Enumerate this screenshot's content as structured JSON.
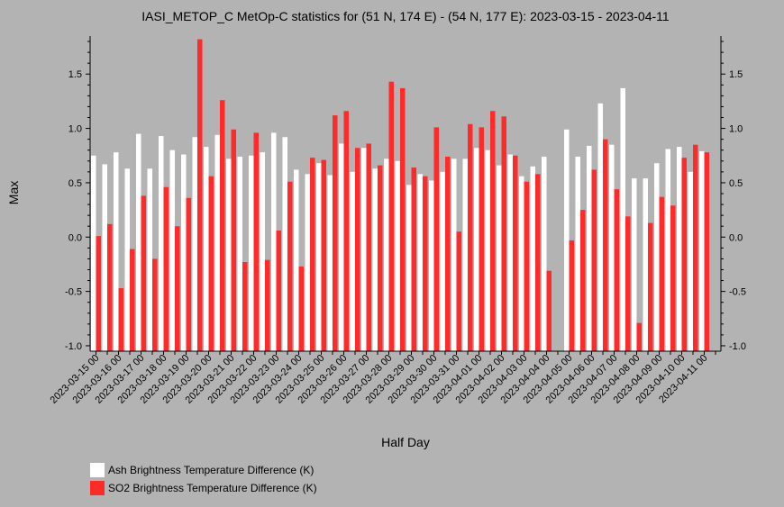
{
  "chart_data": {
    "type": "bar",
    "title": "IASI_METOP_C MetOp-C statistics for (51 N, 174 E) - (54 N, 177 E): 2023-03-15 - 2023-04-11",
    "xlabel": "Half Day",
    "ylabel": "Max",
    "ylim": [
      -1.05,
      1.85
    ],
    "yticks": [
      -1.0,
      -0.5,
      0.0,
      0.5,
      1.0,
      1.5
    ],
    "ytick_labels": [
      "-1.0",
      "-0.5",
      "0.0",
      "0.5",
      "1.0",
      "1.5"
    ],
    "x_start": "2023-03-15 00",
    "x_end": "2023-04-11 12",
    "xtick_labels": [
      "2023-03-15 00",
      "2023-03-16 00",
      "2023-03-17 00",
      "2023-03-18 00",
      "2023-03-19 00",
      "2023-03-20 00",
      "2023-03-21 00",
      "2023-03-22 00",
      "2023-03-23 00",
      "2023-03-24 00",
      "2023-03-25 00",
      "2023-03-26 00",
      "2023-03-27 00",
      "2023-03-28 00",
      "2023-03-29 00",
      "2023-03-30 00",
      "2023-03-31 00",
      "2023-04-01 00",
      "2023-04-02 00",
      "2023-04-03 00",
      "2023-04-04 00",
      "2023-04-05 00",
      "2023-04-06 00",
      "2023-04-07 00",
      "2023-04-08 00",
      "2023-04-09 00",
      "2023-04-10 00",
      "2023-04-11 00"
    ],
    "legend_placement": "bottom-left",
    "series": [
      {
        "name": "Ash Brightness Temperature Difference (K)",
        "color": "#ffffff",
        "values": [
          0.75,
          0.67,
          0.78,
          0.63,
          0.95,
          0.63,
          0.93,
          0.8,
          0.76,
          0.92,
          0.83,
          0.94,
          0.72,
          0.74,
          0.75,
          0.78,
          0.96,
          0.92,
          0.62,
          0.58,
          0.68,
          0.57,
          0.86,
          0.6,
          0.82,
          0.63,
          0.72,
          0.7,
          0.48,
          0.58,
          0.52,
          0.6,
          0.72,
          0.72,
          0.82,
          0.8,
          0.66,
          0.76,
          0.56,
          0.65,
          0.74,
          null,
          0.99,
          0.74,
          0.84,
          1.23,
          0.85,
          1.37,
          0.54,
          0.54,
          0.68,
          0.81,
          0.83,
          0.6,
          0.79,
          null
        ]
      },
      {
        "name": "SO2 Brightness Temperature Difference (K)",
        "color": "#ff2a2a",
        "values": [
          0.01,
          0.12,
          -0.47,
          -0.11,
          0.38,
          -0.2,
          0.46,
          0.1,
          0.36,
          1.82,
          0.56,
          1.26,
          0.99,
          -0.23,
          0.96,
          -0.21,
          0.06,
          0.51,
          -0.27,
          0.73,
          0.71,
          1.12,
          1.16,
          0.82,
          0.86,
          0.66,
          1.43,
          1.37,
          0.64,
          0.56,
          1.01,
          0.74,
          0.05,
          1.04,
          1.01,
          1.16,
          1.11,
          0.75,
          0.51,
          0.58,
          -0.31,
          null,
          -0.03,
          0.25,
          0.62,
          0.9,
          0.44,
          0.19,
          -0.79,
          0.13,
          0.37,
          0.29,
          0.73,
          0.85,
          0.78,
          null
        ]
      }
    ]
  }
}
